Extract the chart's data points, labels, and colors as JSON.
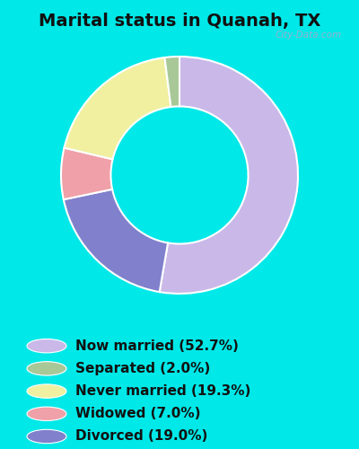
{
  "title": "Marital status in Quanah, TX",
  "pie_order": [
    "Now married",
    "Divorced",
    "Widowed",
    "Never married",
    "Separated"
  ],
  "pie_values": [
    52.7,
    19.0,
    7.0,
    19.3,
    2.0
  ],
  "pie_colors": [
    "#c9b8e8",
    "#8080cc",
    "#f0a0a8",
    "#f0f0a0",
    "#a8c898"
  ],
  "legend_labels": [
    "Now married (52.7%)",
    "Separated (2.0%)",
    "Never married (19.3%)",
    "Widowed (7.0%)",
    "Divorced (19.0%)"
  ],
  "legend_colors": [
    "#c9b8e8",
    "#a8c898",
    "#f0f0a0",
    "#f0a0a8",
    "#8080cc"
  ],
  "bg_color_outer": "#00e8e8",
  "bg_color_inner_tl": "#d0ede0",
  "bg_color_inner_br": "#e8e8f8",
  "watermark": "City-Data.com",
  "title_fontsize": 14,
  "legend_fontsize": 11
}
